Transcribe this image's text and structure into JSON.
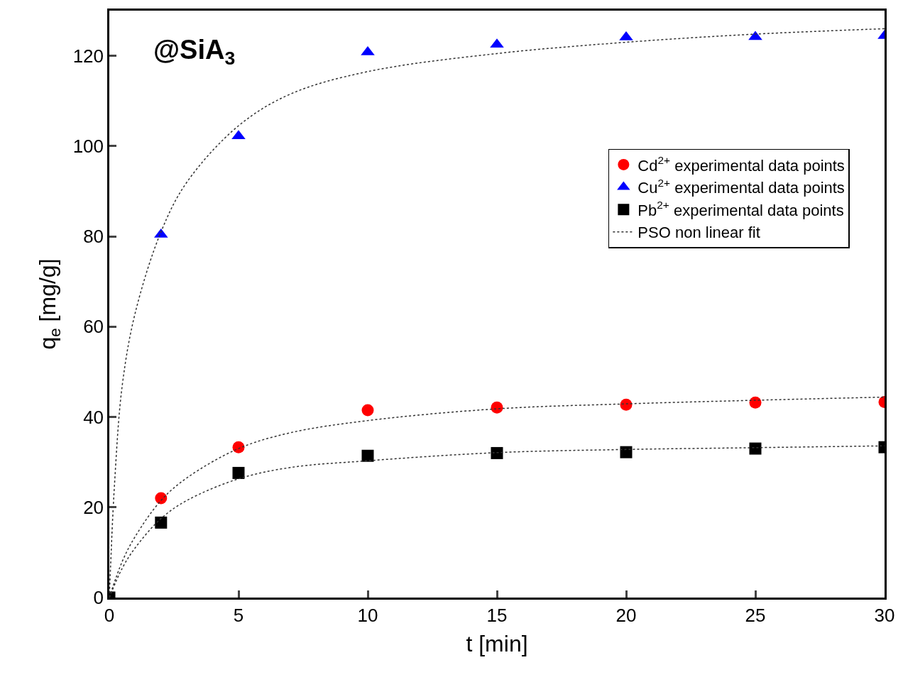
{
  "chart_data": {
    "type": "scatter",
    "xlabel": "t [min]",
    "ylabel": "q$_{e}$ [mg/g]",
    "annotations": [
      "@SiA$_{3}$"
    ],
    "x": [
      0,
      2,
      5,
      10,
      15,
      20,
      25,
      30
    ],
    "series": [
      {
        "name": "Cd$^{2+}$ experimental data points",
        "color": "#ff0000",
        "marker": "circle",
        "values": [
          null,
          22,
          33.3,
          41.5,
          42.1,
          42.7,
          43.2,
          43.3
        ]
      },
      {
        "name": "Cu$^{2+}$ experimental data points",
        "color": "#0000ff",
        "marker": "triangle",
        "values": [
          null,
          80.4,
          102.2,
          120.8,
          122.5,
          124.1,
          124.2,
          124.4
        ]
      },
      {
        "name": "Pb$^{2+}$ experimental data points",
        "color": "#000000",
        "marker": "square",
        "values": [
          0,
          16.6,
          27.6,
          31.4,
          32,
          32.2,
          33,
          33.3
        ]
      },
      {
        "name": "PSO non linear fit",
        "type": "line",
        "line_style": "dotted",
        "color": "#333333",
        "x": [
          0,
          0.2,
          0.5,
          1,
          2,
          3,
          5,
          7,
          10,
          15,
          20,
          25,
          30
        ],
        "values": [
          0,
          25,
          47,
          63,
          81,
          92,
          104.5,
          111.5,
          116.5,
          120.5,
          123,
          124.8,
          126
        ]
      },
      {
        "type": "line",
        "line_style": "dotted",
        "color": "#333333",
        "x": [
          0,
          0.5,
          1,
          2,
          3,
          5,
          7,
          10,
          15,
          20,
          25,
          30
        ],
        "values": [
          0,
          8,
          13.5,
          21.5,
          26.5,
          33,
          36.5,
          39.2,
          41.8,
          42.9,
          43.7,
          44.4
        ]
      },
      {
        "type": "line",
        "line_style": "dotted",
        "color": "#333333",
        "x": [
          0,
          0.5,
          1,
          2,
          3,
          5,
          7,
          10,
          15,
          20,
          25,
          30
        ],
        "values": [
          0,
          6.5,
          11,
          17.5,
          21.5,
          26.3,
          28.8,
          30.3,
          32.1,
          32.8,
          33.2,
          33.6
        ]
      }
    ],
    "xlim": [
      0,
      30
    ],
    "xticks": [
      0,
      5,
      10,
      15,
      20,
      25,
      30
    ],
    "ylim": [
      0,
      130
    ],
    "yticks": [
      0,
      20,
      40,
      60,
      80,
      100,
      120
    ],
    "legend": "right"
  }
}
